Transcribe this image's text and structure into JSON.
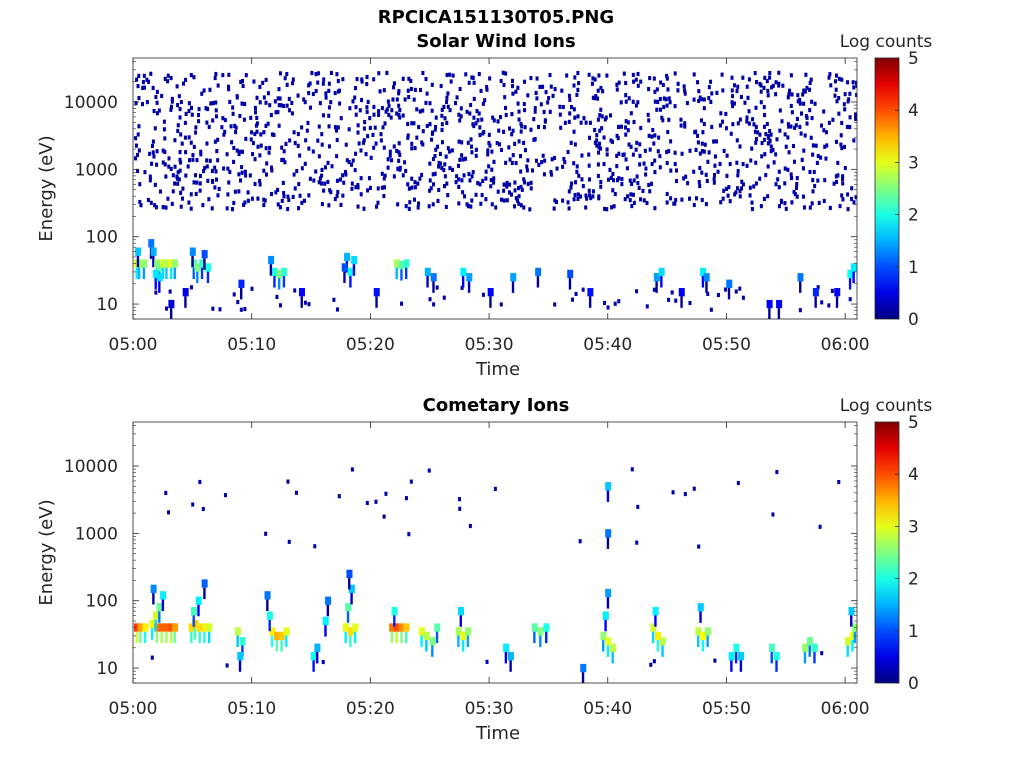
{
  "figure": {
    "title": "RPCICA151130T05.PNG"
  },
  "chart_data": [
    {
      "type": "heatmap",
      "title": "Solar Wind Ions",
      "xlabel": "Time",
      "ylabel": "Energy (eV)",
      "x_ticks": [
        "05:00",
        "05:10",
        "05:20",
        "05:30",
        "05:40",
        "05:50",
        "06:00"
      ],
      "x_range_minutes": [
        0,
        61
      ],
      "y_scale": "log",
      "y_ticks": [
        "10",
        "100",
        "1000",
        "10000"
      ],
      "y_range": [
        6,
        45000
      ],
      "colorbar": {
        "label": "Log counts",
        "ticks": [
          "0",
          "1",
          "2",
          "3",
          "4",
          "5"
        ],
        "range": [
          0,
          5
        ],
        "colormap": "jet"
      },
      "background_counts": {
        "e_range": [
          250,
          25000
        ],
        "density": 0.17,
        "level": 0.2
      },
      "cells": [
        [
          0.3,
          40,
          3.0
        ],
        [
          0.5,
          40,
          2.7
        ],
        [
          0.9,
          40,
          2.6
        ],
        [
          0.4,
          60,
          1.6
        ],
        [
          1.5,
          80,
          1.2
        ],
        [
          1.7,
          60,
          1.5
        ],
        [
          2.0,
          40,
          2.6
        ],
        [
          2.2,
          35,
          2.4
        ],
        [
          2.5,
          40,
          2.9
        ],
        [
          2.8,
          40,
          2.8
        ],
        [
          3.2,
          40,
          3.0
        ],
        [
          3.5,
          40,
          2.6
        ],
        [
          1.9,
          28,
          1.8
        ],
        [
          2.2,
          25,
          1.7
        ],
        [
          5.1,
          40,
          2.3
        ],
        [
          5.4,
          35,
          2.5
        ],
        [
          5.8,
          40,
          2.1
        ],
        [
          6.3,
          35,
          2.0
        ],
        [
          5.0,
          60,
          1.3
        ],
        [
          6.0,
          55,
          1.0
        ],
        [
          11.9,
          30,
          2.0
        ],
        [
          12.3,
          28,
          2.5
        ],
        [
          12.7,
          30,
          2.1
        ],
        [
          11.6,
          45,
          1.3
        ],
        [
          18.0,
          50,
          1.5
        ],
        [
          18.3,
          30,
          1.9
        ],
        [
          18.6,
          45,
          1.7
        ],
        [
          17.8,
          35,
          1.0
        ],
        [
          22.2,
          40,
          2.7
        ],
        [
          22.6,
          38,
          2.3
        ],
        [
          23.0,
          40,
          2.1
        ],
        [
          24.8,
          30,
          1.5
        ],
        [
          25.3,
          25,
          1.2
        ],
        [
          27.8,
          30,
          1.8
        ],
        [
          28.3,
          25,
          1.4
        ],
        [
          32.0,
          25,
          1.4
        ],
        [
          34.1,
          30,
          1.2
        ],
        [
          36.8,
          28,
          1.0
        ],
        [
          44.1,
          25,
          1.4
        ],
        [
          44.5,
          30,
          1.7
        ],
        [
          48.0,
          30,
          1.8
        ],
        [
          48.3,
          25,
          1.3
        ],
        [
          50.2,
          20,
          1.2
        ],
        [
          53.6,
          10,
          0.6
        ],
        [
          54.4,
          10,
          0.6
        ],
        [
          56.2,
          25,
          1.2
        ],
        [
          60.4,
          28,
          1.9
        ],
        [
          60.7,
          35,
          1.8
        ],
        [
          3.2,
          10,
          0.4
        ],
        [
          4.4,
          15,
          0.5
        ],
        [
          9.1,
          20,
          0.8
        ],
        [
          14.2,
          15,
          0.6
        ],
        [
          20.5,
          15,
          0.7
        ],
        [
          30.1,
          15,
          0.6
        ],
        [
          38.5,
          15,
          0.7
        ],
        [
          46.2,
          15,
          0.6
        ],
        [
          57.5,
          15,
          0.8
        ],
        [
          59.3,
          15,
          0.6
        ]
      ]
    },
    {
      "type": "heatmap",
      "title": "Cometary Ions",
      "xlabel": "Time",
      "ylabel": "Energy (eV)",
      "x_ticks": [
        "05:00",
        "05:10",
        "05:20",
        "05:30",
        "05:40",
        "05:50",
        "06:00"
      ],
      "x_range_minutes": [
        0,
        61
      ],
      "y_scale": "log",
      "y_ticks": [
        "10",
        "100",
        "1000",
        "10000"
      ],
      "y_range": [
        6,
        45000
      ],
      "colorbar": {
        "label": "Log counts",
        "ticks": [
          "0",
          "1",
          "2",
          "3",
          "4",
          "5"
        ],
        "range": [
          0,
          5
        ],
        "colormap": "jet"
      },
      "background_counts": {
        "e_range": [
          600,
          9000
        ],
        "density": 0.008,
        "level": 0.2
      },
      "cells": [
        [
          0.3,
          40,
          4.1
        ],
        [
          0.6,
          40,
          3.6
        ],
        [
          1.0,
          40,
          3.2
        ],
        [
          1.6,
          45,
          3.0
        ],
        [
          2.0,
          40,
          3.8
        ],
        [
          2.4,
          40,
          3.9
        ],
        [
          2.8,
          40,
          3.9
        ],
        [
          3.2,
          40,
          4.0
        ],
        [
          3.5,
          40,
          3.6
        ],
        [
          1.9,
          60,
          2.9
        ],
        [
          2.2,
          80,
          2.4
        ],
        [
          2.5,
          120,
          1.8
        ],
        [
          1.7,
          150,
          1.3
        ],
        [
          4.9,
          40,
          3.3
        ],
        [
          5.2,
          45,
          3.4
        ],
        [
          5.6,
          40,
          3.3
        ],
        [
          6.0,
          40,
          3.2
        ],
        [
          6.4,
          40,
          2.9
        ],
        [
          5.1,
          70,
          2.2
        ],
        [
          5.5,
          100,
          1.8
        ],
        [
          6.0,
          180,
          1.1
        ],
        [
          8.8,
          35,
          2.8
        ],
        [
          9.2,
          25,
          2.1
        ],
        [
          9.0,
          15,
          1.6
        ],
        [
          11.7,
          35,
          3.2
        ],
        [
          12.1,
          30,
          3.5
        ],
        [
          12.5,
          30,
          3.4
        ],
        [
          12.9,
          35,
          3.0
        ],
        [
          11.5,
          60,
          2.0
        ],
        [
          11.3,
          120,
          1.2
        ],
        [
          15.2,
          15,
          1.9
        ],
        [
          15.5,
          20,
          1.5
        ],
        [
          16.2,
          50,
          1.8
        ],
        [
          16.4,
          100,
          1.2
        ],
        [
          17.9,
          40,
          3.0
        ],
        [
          18.3,
          35,
          3.3
        ],
        [
          18.7,
          40,
          3.0
        ],
        [
          18.1,
          80,
          2.3
        ],
        [
          18.4,
          150,
          1.6
        ],
        [
          18.2,
          250,
          1.0
        ],
        [
          21.8,
          40,
          3.8
        ],
        [
          22.2,
          40,
          4.0
        ],
        [
          22.6,
          40,
          3.7
        ],
        [
          23.0,
          40,
          3.4
        ],
        [
          22.0,
          70,
          2.0
        ],
        [
          24.3,
          35,
          3.0
        ],
        [
          24.7,
          30,
          2.8
        ],
        [
          25.2,
          25,
          2.5
        ],
        [
          25.6,
          40,
          2.3
        ],
        [
          27.4,
          35,
          2.7
        ],
        [
          27.8,
          30,
          3.0
        ],
        [
          28.2,
          35,
          2.6
        ],
        [
          27.6,
          70,
          1.7
        ],
        [
          31.4,
          20,
          1.8
        ],
        [
          31.8,
          15,
          1.5
        ],
        [
          33.8,
          40,
          2.3
        ],
        [
          34.3,
          35,
          2.5
        ],
        [
          34.8,
          40,
          2.0
        ],
        [
          37.9,
          10,
          1.2
        ],
        [
          39.6,
          30,
          2.6
        ],
        [
          40.0,
          25,
          3.0
        ],
        [
          40.4,
          20,
          2.8
        ],
        [
          39.8,
          60,
          1.8
        ],
        [
          40.0,
          130,
          1.4
        ],
        [
          40.0,
          1000,
          1.2
        ],
        [
          40.0,
          5000,
          1.6
        ],
        [
          43.8,
          40,
          2.9
        ],
        [
          44.2,
          30,
          3.2
        ],
        [
          44.6,
          25,
          2.8
        ],
        [
          44.0,
          70,
          1.8
        ],
        [
          47.6,
          35,
          2.8
        ],
        [
          48.0,
          30,
          3.1
        ],
        [
          48.4,
          35,
          2.6
        ],
        [
          47.8,
          80,
          1.6
        ],
        [
          50.4,
          15,
          1.8
        ],
        [
          50.8,
          20,
          2.0
        ],
        [
          51.2,
          15,
          1.6
        ],
        [
          53.8,
          20,
          2.2
        ],
        [
          54.2,
          15,
          2.0
        ],
        [
          56.6,
          20,
          2.6
        ],
        [
          57.0,
          25,
          2.4
        ],
        [
          57.4,
          20,
          2.1
        ],
        [
          60.2,
          25,
          2.9
        ],
        [
          60.6,
          30,
          3.0
        ],
        [
          60.8,
          40,
          2.6
        ],
        [
          60.5,
          70,
          1.6
        ]
      ]
    }
  ]
}
